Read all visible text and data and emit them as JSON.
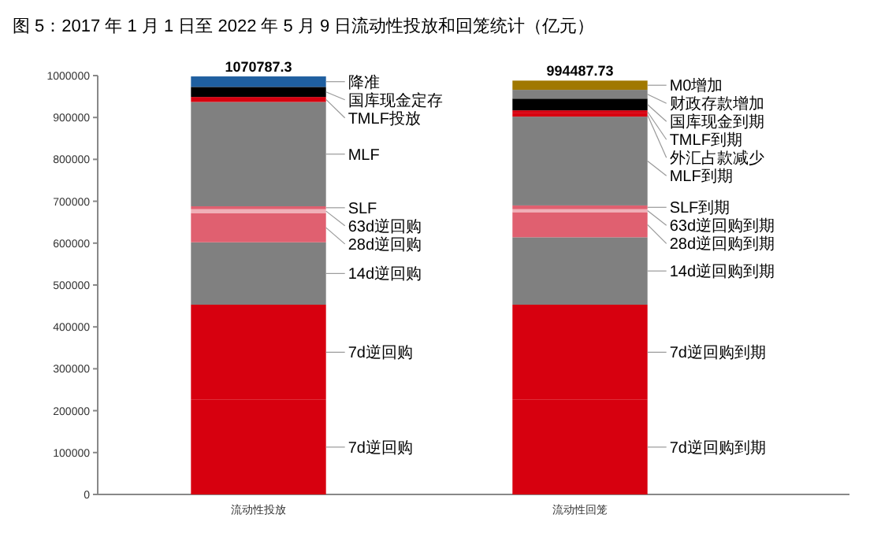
{
  "chart_data": {
    "type": "bar",
    "stacked": true,
    "title": "图 5：2017 年 1 月 1 日至 2022 年 5 月 9 日流动性投放和回笼统计（亿元）",
    "categories": [
      "流动性投放",
      "流动性回笼"
    ],
    "series": [
      {
        "name": "7d逆回购",
        "color": "#d7000f",
        "values": [
          226000,
          null
        ]
      },
      {
        "name": "7d逆回购",
        "color": "#d7000f",
        "values": [
          227000,
          null
        ]
      },
      {
        "name": "14d逆回购",
        "color": "#808080",
        "values": [
          149000,
          null
        ]
      },
      {
        "name": "28d逆回购",
        "color": "#e06070",
        "values": [
          70000,
          null
        ]
      },
      {
        "name": "63d逆回购",
        "color": "#f0b0b8",
        "values": [
          9000,
          null
        ]
      },
      {
        "name": "SLF",
        "color": "#e06070",
        "values": [
          7000,
          null
        ]
      },
      {
        "name": "MLF",
        "color": "#808080",
        "values": [
          249000,
          null
        ]
      },
      {
        "name": "TMLF投放",
        "color": "#d7000f",
        "values": [
          12000,
          null
        ]
      },
      {
        "name": "国库现金定存",
        "color": "#000000",
        "values": [
          24000,
          null
        ]
      },
      {
        "name": "降准",
        "color": "#1f5fa0",
        "values": [
          25000,
          null
        ]
      },
      {
        "name": "7d逆回购到期",
        "color": "#d7000f",
        "values": [
          null,
          226000
        ]
      },
      {
        "name": "7d逆回购到期",
        "color": "#d7000f",
        "values": [
          null,
          227000
        ]
      },
      {
        "name": "14d逆回购到期",
        "color": "#808080",
        "values": [
          null,
          161000
        ]
      },
      {
        "name": "28d逆回购到期",
        "color": "#e06070",
        "values": [
          null,
          60000
        ]
      },
      {
        "name": "63d逆回购到期",
        "color": "#f0b0b8",
        "values": [
          null,
          7000
        ]
      },
      {
        "name": "SLF到期",
        "color": "#e06070",
        "values": [
          null,
          9000
        ]
      },
      {
        "name": "MLF到期",
        "color": "#808080",
        "values": [
          null,
          212000
        ]
      },
      {
        "name": "外汇占款减少",
        "color": "#d7000f",
        "values": [
          null,
          8000
        ]
      },
      {
        "name": "TMLF到期",
        "color": "#d7000f",
        "values": [
          null,
          7000
        ]
      },
      {
        "name": "国库现金到期",
        "color": "#000000",
        "values": [
          null,
          28000
        ]
      },
      {
        "name": "财政存款增加",
        "color": "#808080",
        "values": [
          null,
          21000
        ]
      },
      {
        "name": "M0增加",
        "color": "#a07800",
        "values": [
          null,
          22000
        ]
      }
    ],
    "ylim": [
      0,
      1000000
    ],
    "yticks": [
      0,
      100000,
      200000,
      300000,
      400000,
      500000,
      600000,
      700000,
      800000,
      900000,
      1000000
    ],
    "grid": false,
    "legend": false,
    "annotations": [
      {
        "text": "1070787.3",
        "x": "流动性投放",
        "y": 998000
      },
      {
        "text": "994487.73",
        "x": "流动性回笼",
        "y": 988000
      }
    ]
  }
}
